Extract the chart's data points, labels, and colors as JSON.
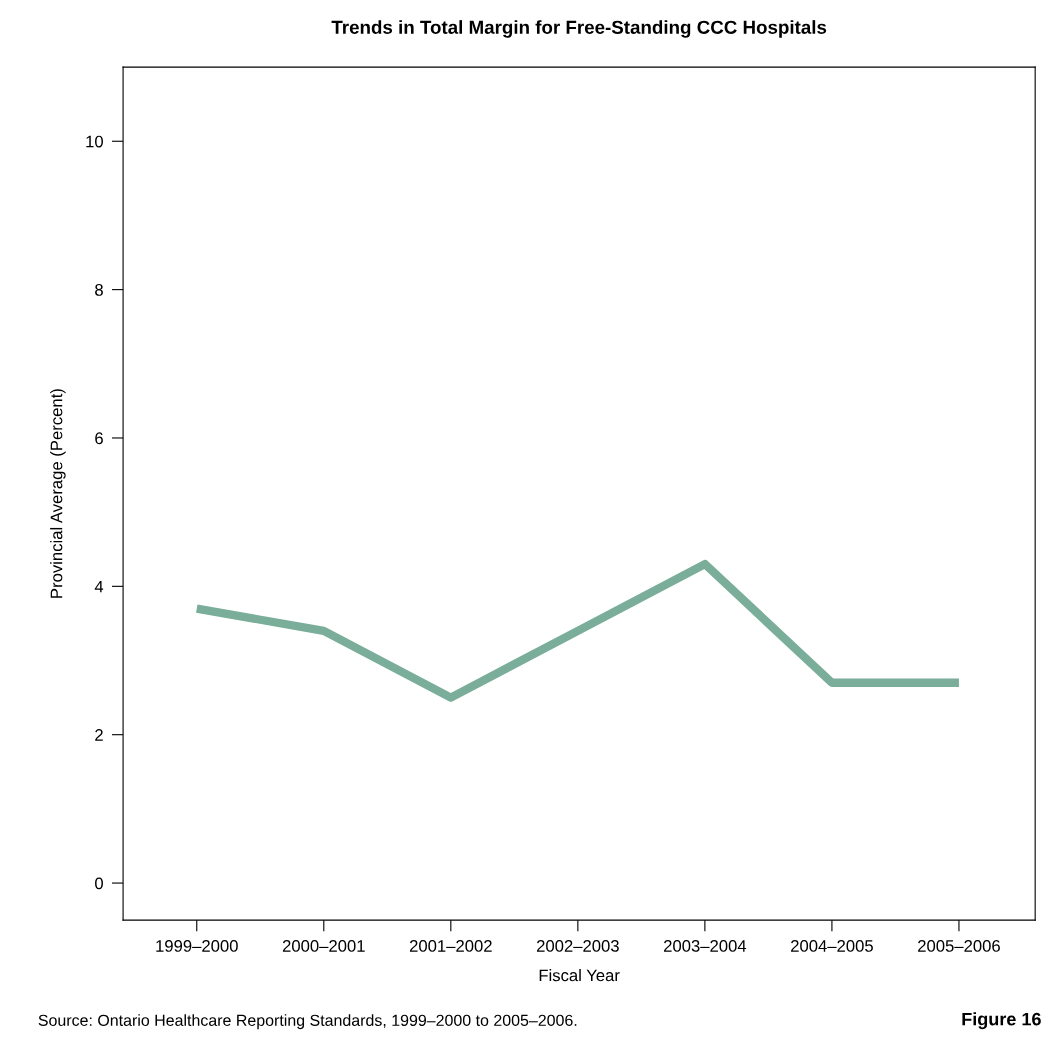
{
  "chart_data": {
    "type": "line",
    "title": "Trends in Total Margin for Free-Standing CCC Hospitals",
    "xlabel": "Fiscal Year",
    "ylabel": "Provincial Average (Percent)",
    "categories": [
      "1999–2000",
      "2000–2001",
      "2001–2002",
      "2002–2003",
      "2003–2004",
      "2004–2005",
      "2005–2006"
    ],
    "series": [
      {
        "color": "#7aae9a",
        "values": [
          3.7,
          3.4,
          2.5,
          3.4,
          4.3,
          2.7,
          2.7
        ]
      }
    ],
    "ylim": [
      -0.5,
      11
    ],
    "yticks": [
      0,
      2,
      4,
      6,
      8,
      10
    ],
    "grid": false,
    "legend": false,
    "marker": "none",
    "line_style": "solid",
    "annotations": [
      "Source: Ontario Healthcare Reporting Standards, 1999–2000 to 2005–2006.",
      "Figure 16"
    ]
  }
}
